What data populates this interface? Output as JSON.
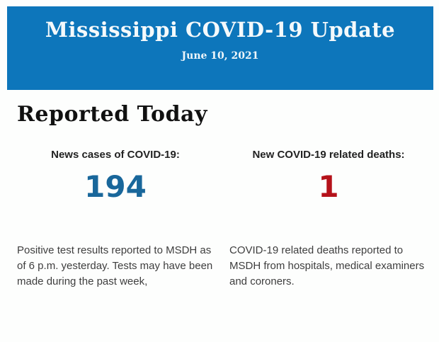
{
  "banner": {
    "title": "Mississippi COVID-19 Update",
    "date": "June 10, 2021",
    "background_color": "#0d76bb"
  },
  "section": {
    "heading": "Reported Today"
  },
  "stats": {
    "cases": {
      "label": "News cases of COVID-19:",
      "value": "194",
      "value_color": "#19679b",
      "description": "Positive test results reported to MSDH as of 6 p.m. yesterday. Tests may have been made during the past week,"
    },
    "deaths": {
      "label": "New COVID-19 related deaths:",
      "value": "1",
      "value_color": "#b5121a",
      "description": "COVID-19 related deaths reported to MSDH from hospitals, medical examiners and coroners."
    }
  }
}
